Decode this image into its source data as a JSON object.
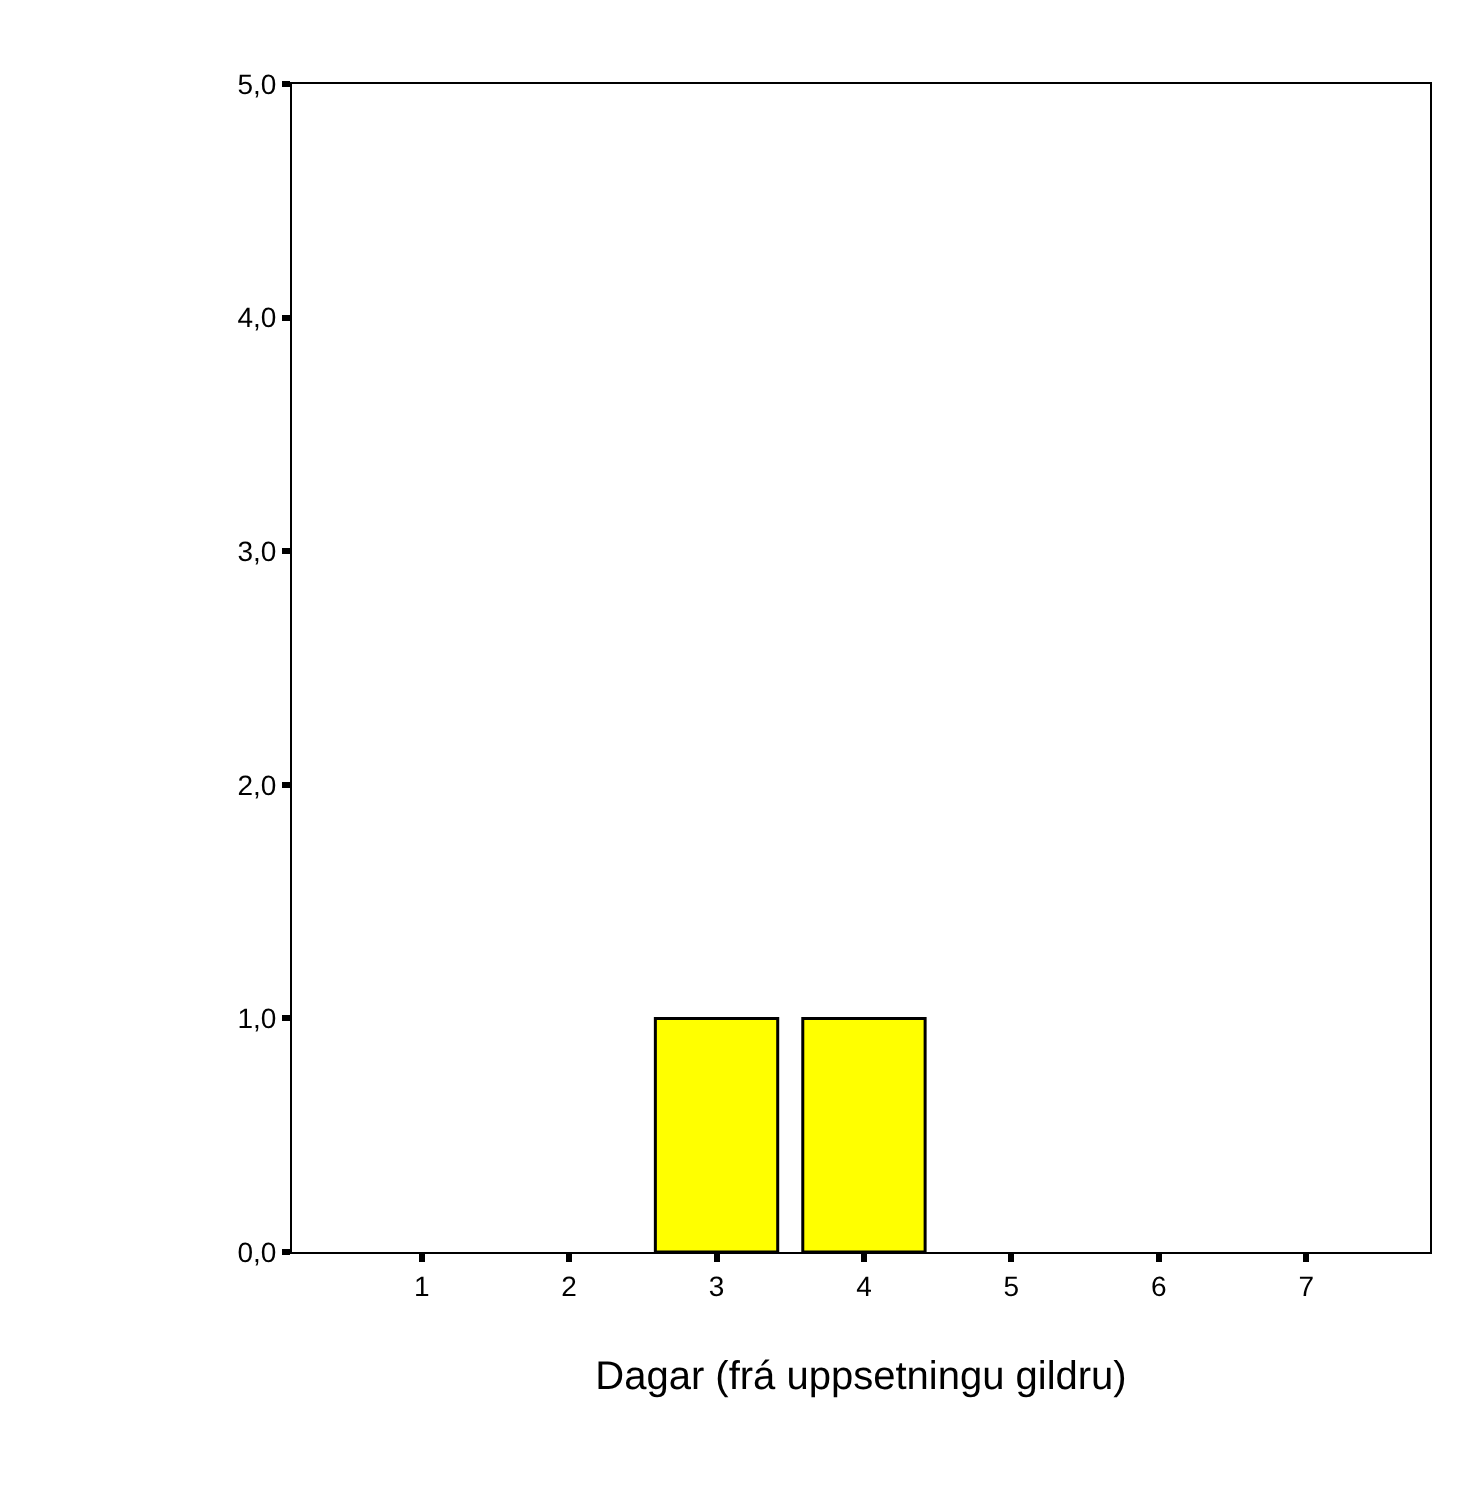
{
  "chart_data": {
    "type": "bar",
    "xlabel": "Dagar (frá uppsetningu gildru)",
    "categories": [
      "1",
      "2",
      "3",
      "4",
      "5",
      "6",
      "7"
    ],
    "values": [
      0,
      0,
      1,
      1,
      0,
      0,
      0
    ],
    "color": "#ffff00",
    "ylim": [
      0,
      5
    ],
    "yticks": [
      {
        "value": 0,
        "label": "0,0"
      },
      {
        "value": 1,
        "label": "1,0"
      },
      {
        "value": 2,
        "label": "2,0"
      },
      {
        "value": 3,
        "label": "3,0"
      },
      {
        "value": 4,
        "label": "4,0"
      },
      {
        "value": 5,
        "label": "5,0"
      }
    ],
    "tick_labels": "xy"
  }
}
